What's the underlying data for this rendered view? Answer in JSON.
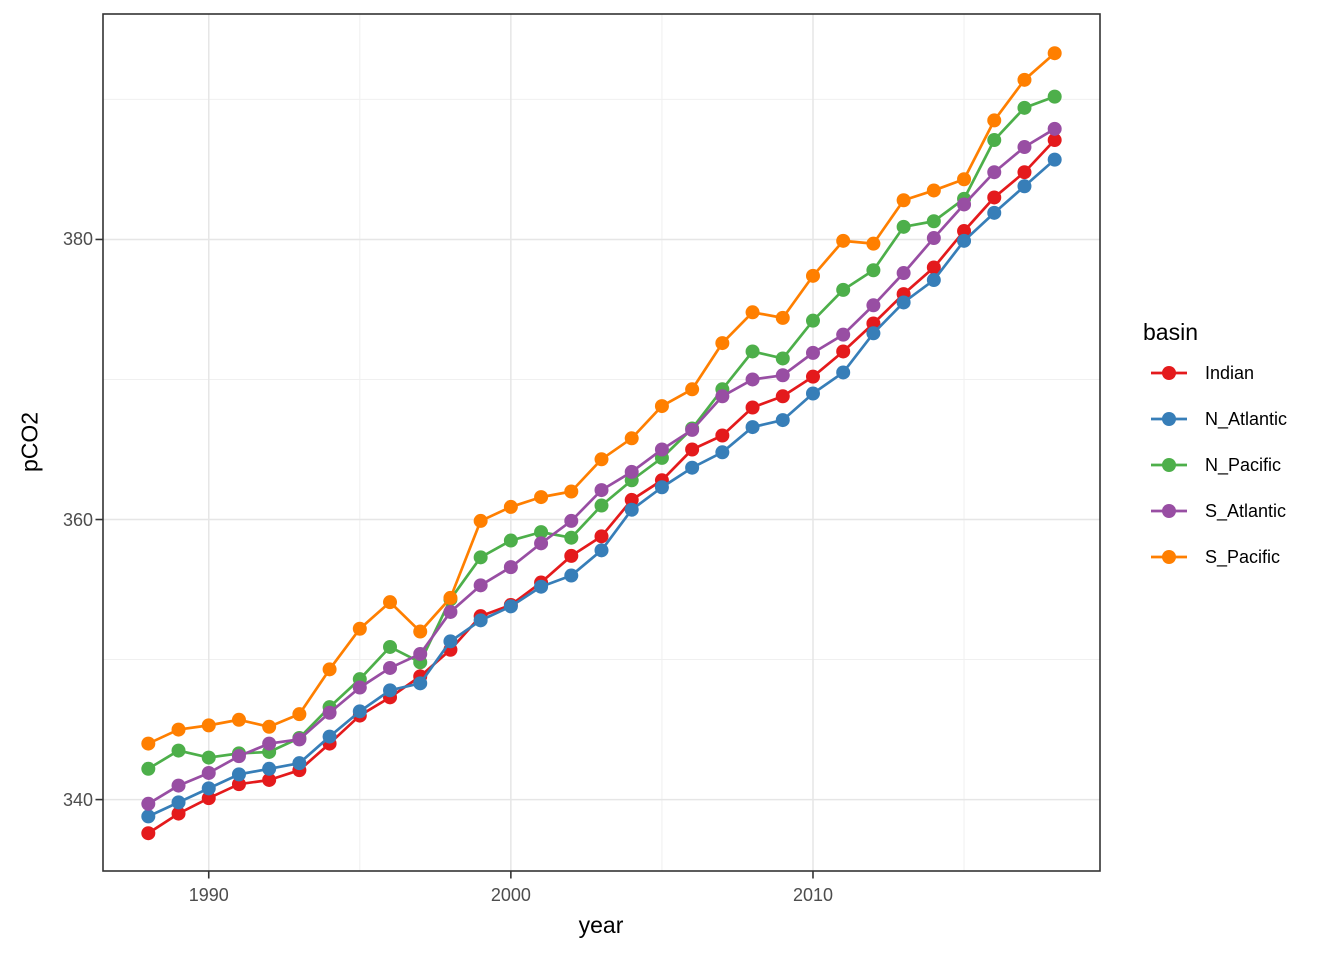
{
  "chart_data": {
    "type": "line",
    "title": "",
    "xlabel": "year",
    "ylabel": "pCO2",
    "legend_title": "basin",
    "legend_position": "right",
    "grid": "major+minor",
    "marker": "filled-circle",
    "x": [
      1988,
      1989,
      1990,
      1991,
      1992,
      1993,
      1994,
      1995,
      1996,
      1997,
      1998,
      1999,
      2000,
      2001,
      2002,
      2003,
      2004,
      2005,
      2006,
      2007,
      2008,
      2009,
      2010,
      2011,
      2012,
      2013,
      2014,
      2015,
      2016,
      2017,
      2018
    ],
    "series": [
      {
        "name": "Indian",
        "color": "#e41a1c",
        "values": [
          337.6,
          339.0,
          340.1,
          341.1,
          341.4,
          342.1,
          344.0,
          346.0,
          347.3,
          348.8,
          350.7,
          353.1,
          353.9,
          355.5,
          357.4,
          358.8,
          361.4,
          362.8,
          365.0,
          366.0,
          368.0,
          368.8,
          370.2,
          372.0,
          374.0,
          376.1,
          378.0,
          380.6,
          383.0,
          384.8,
          387.1
        ]
      },
      {
        "name": "N_Atlantic",
        "color": "#377eb8",
        "values": [
          338.8,
          339.8,
          340.8,
          341.8,
          342.2,
          342.6,
          344.5,
          346.3,
          347.8,
          348.3,
          351.3,
          352.8,
          353.8,
          355.2,
          356.0,
          357.8,
          360.7,
          362.3,
          363.7,
          364.8,
          366.6,
          367.1,
          369.0,
          370.5,
          373.3,
          375.5,
          377.1,
          379.9,
          381.9,
          383.8,
          385.7
        ]
      },
      {
        "name": "N_Pacific",
        "color": "#4daf4a",
        "values": [
          342.2,
          343.5,
          343.0,
          343.3,
          343.4,
          344.4,
          346.6,
          348.6,
          350.9,
          349.8,
          354.3,
          357.3,
          358.5,
          359.1,
          358.7,
          361.0,
          362.8,
          364.4,
          366.5,
          369.3,
          372.0,
          371.5,
          374.2,
          376.4,
          377.8,
          380.9,
          381.3,
          382.9,
          387.1,
          389.4,
          390.2
        ]
      },
      {
        "name": "S_Atlantic",
        "color": "#984ea3",
        "values": [
          339.7,
          341.0,
          341.9,
          343.1,
          344.0,
          344.3,
          346.2,
          348.0,
          349.4,
          350.4,
          353.4,
          355.3,
          356.6,
          358.3,
          359.9,
          362.1,
          363.4,
          365.0,
          366.4,
          368.8,
          370.0,
          370.3,
          371.9,
          373.2,
          375.3,
          377.6,
          380.1,
          382.5,
          384.8,
          386.6,
          387.9
        ]
      },
      {
        "name": "S_Pacific",
        "color": "#ff7f00",
        "values": [
          344.0,
          345.0,
          345.3,
          345.7,
          345.2,
          346.1,
          349.3,
          352.2,
          354.1,
          352.0,
          354.4,
          359.9,
          360.9,
          361.6,
          362.0,
          364.3,
          365.8,
          368.1,
          369.3,
          372.6,
          374.8,
          374.4,
          377.4,
          379.9,
          379.7,
          382.8,
          383.5,
          384.3,
          388.5,
          391.4,
          393.3
        ]
      }
    ],
    "x_major_ticks": [
      1990,
      2000,
      2010
    ],
    "x_tick_labels": [
      "1990",
      "2000",
      "2010"
    ],
    "x_minor_gridlines": [
      1995,
      2005,
      2015
    ],
    "y_major_ticks": [
      340,
      360,
      380
    ],
    "y_tick_labels": [
      "340",
      "360",
      "380"
    ],
    "y_minor_gridlines": [
      350,
      370,
      390
    ],
    "xlim": [
      1986.5,
      2019.5
    ],
    "ylim": [
      334.9,
      396.1
    ]
  },
  "style": {
    "panel_background": "#ffffff",
    "grid_major_color": "#e6e6e6",
    "grid_minor_color": "#f0f0f0",
    "panel_border_color": "#333333",
    "tick_color": "#333333",
    "tick_text_color": "#4d4d4d",
    "axis_title_color": "#000000"
  }
}
